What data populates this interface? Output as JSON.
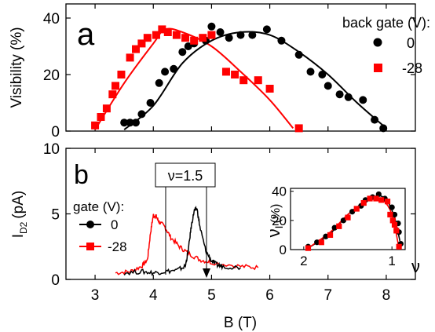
{
  "chart_data": [
    {
      "panel_label": "a",
      "type": "scatter",
      "xlabel": "",
      "ylabel": "Visibility (%)",
      "xlim": [
        2.5,
        8.5
      ],
      "ylim": [
        0,
        45
      ],
      "yticks": [
        0,
        20,
        40
      ],
      "legend": {
        "title": "back gate (V):",
        "placement": "top-right"
      },
      "series": [
        {
          "name": "0",
          "marker": "circle",
          "color": "#000000",
          "points": [
            [
              3.5,
              3
            ],
            [
              3.6,
              3
            ],
            [
              3.7,
              3
            ],
            [
              3.8,
              6
            ],
            [
              3.95,
              10
            ],
            [
              4.1,
              17
            ],
            [
              4.2,
              21
            ],
            [
              4.35,
              22
            ],
            [
              4.5,
              28
            ],
            [
              4.6,
              30
            ],
            [
              4.7,
              31
            ],
            [
              4.9,
              32
            ],
            [
              5.0,
              37
            ],
            [
              5.15,
              35
            ],
            [
              5.3,
              33
            ],
            [
              5.5,
              34
            ],
            [
              5.7,
              34
            ],
            [
              5.95,
              36
            ],
            [
              6.2,
              32
            ],
            [
              6.5,
              27
            ],
            [
              6.7,
              21
            ],
            [
              6.9,
              20
            ],
            [
              7.0,
              16
            ],
            [
              7.2,
              13
            ],
            [
              7.35,
              12
            ],
            [
              7.6,
              11
            ],
            [
              7.8,
              4
            ],
            [
              7.95,
              1
            ]
          ],
          "fit": [
            [
              3.5,
              0.5
            ],
            [
              4.0,
              9
            ],
            [
              4.5,
              24
            ],
            [
              5.0,
              32
            ],
            [
              5.5,
              35
            ],
            [
              6.0,
              34
            ],
            [
              6.5,
              28
            ],
            [
              7.0,
              20
            ],
            [
              7.5,
              10
            ],
            [
              8.0,
              1
            ]
          ]
        },
        {
          "name": "-28",
          "marker": "square",
          "color": "#ff0000",
          "points": [
            [
              3.0,
              2
            ],
            [
              3.1,
              5
            ],
            [
              3.2,
              8
            ],
            [
              3.3,
              13
            ],
            [
              3.35,
              16
            ],
            [
              3.45,
              20
            ],
            [
              3.6,
              26
            ],
            [
              3.7,
              29
            ],
            [
              3.8,
              31
            ],
            [
              3.9,
              33
            ],
            [
              4.05,
              34
            ],
            [
              4.15,
              36
            ],
            [
              4.25,
              35
            ],
            [
              4.4,
              34
            ],
            [
              4.55,
              33
            ],
            [
              4.7,
              32
            ],
            [
              4.85,
              33
            ],
            [
              5.0,
              34
            ],
            [
              5.25,
              21
            ],
            [
              5.4,
              20
            ],
            [
              5.55,
              18
            ],
            [
              5.8,
              18
            ],
            [
              6.0,
              15
            ],
            [
              6.5,
              1
            ]
          ],
          "fit": [
            [
              3.0,
              0.5
            ],
            [
              3.5,
              17
            ],
            [
              4.0,
              31
            ],
            [
              4.2,
              36
            ],
            [
              4.5,
              35
            ],
            [
              5.0,
              30
            ],
            [
              5.5,
              21
            ],
            [
              6.0,
              11
            ],
            [
              6.4,
              1
            ]
          ]
        }
      ]
    },
    {
      "panel_label": "b",
      "type": "line",
      "xlabel": "B (T)",
      "ylabel_main": "I",
      "ylabel_sub": "D2",
      "ylabel_unit": "(pA)",
      "xlim": [
        2.5,
        8.5
      ],
      "ylim": [
        0,
        10
      ],
      "xticks": [
        3,
        4,
        5,
        6,
        7,
        8
      ],
      "yticks": [
        0,
        5,
        10
      ],
      "annotation": "ν=1.5",
      "legend": {
        "title": "gate (V):",
        "placement": "left"
      },
      "series": [
        {
          "name": "0",
          "color": "#000000",
          "x": [
            3.5,
            3.8,
            4.0,
            4.2,
            4.4,
            4.55,
            4.6,
            4.65,
            4.7,
            4.75,
            4.8,
            4.9,
            5.0,
            5.1,
            5.2,
            5.5
          ],
          "y": [
            0.5,
            0.6,
            0.5,
            0.6,
            0.7,
            1.0,
            2.2,
            4.0,
            5.2,
            5.4,
            4.0,
            2.2,
            1.4,
            1.1,
            1.0,
            0.9
          ]
        },
        {
          "name": "-28",
          "color": "#ff0000",
          "x": [
            3.35,
            3.6,
            3.8,
            3.9,
            3.95,
            4.0,
            4.05,
            4.1,
            4.2,
            4.3,
            4.45,
            4.6,
            4.8,
            5.0,
            5.5,
            5.8
          ],
          "y": [
            0.5,
            0.6,
            1.0,
            1.5,
            3.5,
            4.9,
            4.8,
            4.4,
            4.0,
            3.2,
            2.5,
            2.0,
            1.5,
            1.3,
            1.0,
            0.9
          ]
        }
      ]
    },
    {
      "panel_label": "inset",
      "type": "scatter",
      "xlabel": "ν",
      "ylabel_main": "ν",
      "ylabel_sub": "I",
      "ylabel_unit": "(%)",
      "xlim": [
        2.15,
        0.85
      ],
      "ylim": [
        0,
        42
      ],
      "xticks": [
        2,
        1
      ],
      "yticks": [
        0,
        20,
        40
      ],
      "series": [
        {
          "name": "0",
          "marker": "circle",
          "color": "#000000",
          "points": [
            [
              1.95,
              2
            ],
            [
              1.85,
              5
            ],
            [
              1.75,
              9
            ],
            [
              1.65,
              15
            ],
            [
              1.55,
              20
            ],
            [
              1.45,
              26
            ],
            [
              1.35,
              30
            ],
            [
              1.3,
              34
            ],
            [
              1.22,
              36
            ],
            [
              1.15,
              38
            ],
            [
              1.08,
              35
            ],
            [
              1.0,
              29
            ],
            [
              0.97,
              24
            ],
            [
              0.93,
              18
            ],
            [
              0.92,
              12
            ],
            [
              0.9,
              4
            ]
          ],
          "fit": [
            [
              1.95,
              1
            ],
            [
              1.7,
              11
            ],
            [
              1.5,
              24
            ],
            [
              1.3,
              33
            ],
            [
              1.15,
              37
            ],
            [
              1.05,
              33
            ],
            [
              0.97,
              22
            ],
            [
              0.91,
              6
            ]
          ]
        },
        {
          "name": "-28",
          "marker": "square",
          "color": "#ff0000",
          "points": [
            [
              1.95,
              1
            ],
            [
              1.8,
              5
            ],
            [
              1.7,
              10
            ],
            [
              1.6,
              16
            ],
            [
              1.5,
              22
            ],
            [
              1.4,
              28
            ],
            [
              1.32,
              32
            ],
            [
              1.25,
              35
            ],
            [
              1.18,
              35
            ],
            [
              1.12,
              34
            ],
            [
              1.05,
              33
            ],
            [
              1.02,
              24
            ],
            [
              0.99,
              20
            ],
            [
              0.97,
              17
            ],
            [
              0.95,
              13
            ],
            [
              0.92,
              2
            ]
          ],
          "fit": [
            [
              1.95,
              1
            ],
            [
              1.7,
              12
            ],
            [
              1.5,
              24
            ],
            [
              1.3,
              33
            ],
            [
              1.2,
              35
            ],
            [
              1.1,
              34
            ],
            [
              1.0,
              24
            ],
            [
              0.92,
              1
            ]
          ]
        }
      ]
    }
  ]
}
